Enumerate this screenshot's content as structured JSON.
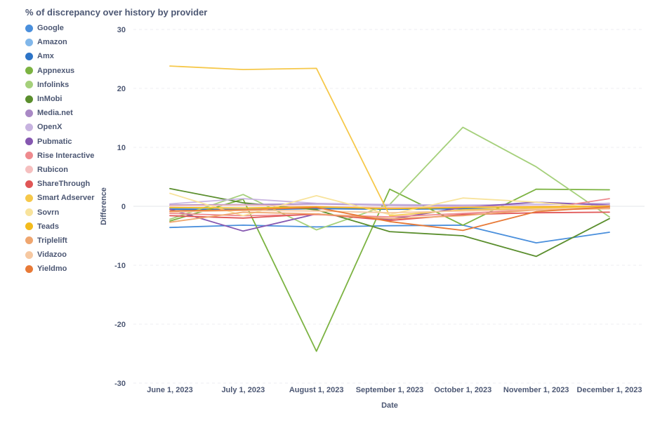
{
  "chart_data": {
    "type": "line",
    "title": "% of discrepancy over history by provider",
    "xlabel": "Date",
    "ylabel": "Difference",
    "x": [
      "June 1, 2023",
      "July 1, 2023",
      "August 1, 2023",
      "September 1, 2023",
      "October 1, 2023",
      "November 1, 2023",
      "December 1, 2023"
    ],
    "ylim": [
      -30,
      30
    ],
    "yticks": [
      30,
      20,
      10,
      0,
      -10,
      -20,
      -30
    ],
    "grid": true,
    "legend_position": "left",
    "series": [
      {
        "name": "Google",
        "color": "#4a8fdc",
        "values": [
          -3.6,
          -3.2,
          -3.5,
          -3.3,
          -3.2,
          -6.2,
          -4.4
        ]
      },
      {
        "name": "Amazon",
        "color": "#81b7ea",
        "values": [
          -0.3,
          -0.4,
          -0.2,
          -0.3,
          -0.4,
          -0.5,
          -0.2
        ]
      },
      {
        "name": "Amx",
        "color": "#2d74c7",
        "values": [
          -0.5,
          -0.6,
          -0.4,
          -0.5,
          -0.4,
          -0.6,
          -0.3
        ]
      },
      {
        "name": "Appnexus",
        "color": "#7cb342",
        "values": [
          -2.5,
          1.2,
          -24.6,
          2.9,
          -3.2,
          2.9,
          2.8
        ]
      },
      {
        "name": "Infolinks",
        "color": "#a5d07b",
        "values": [
          -2.2,
          2.0,
          -4.0,
          0.3,
          13.4,
          6.7,
          -1.8
        ]
      },
      {
        "name": "InMobi",
        "color": "#5a8e2d",
        "values": [
          3.0,
          0.6,
          -0.6,
          -4.3,
          -5.0,
          -8.5,
          -2.1
        ]
      },
      {
        "name": "Media.net",
        "color": "#a989c5",
        "values": [
          0.2,
          0.3,
          0.4,
          0.2,
          0.1,
          0.3,
          0.5
        ]
      },
      {
        "name": "OpenX",
        "color": "#c7b3e0",
        "values": [
          0.4,
          1.3,
          0.5,
          0.3,
          0.2,
          0.3,
          0.5
        ]
      },
      {
        "name": "Pubmatic",
        "color": "#8557b0",
        "values": [
          -0.5,
          -4.2,
          -1.3,
          -2.2,
          -0.2,
          0.7,
          0.2
        ]
      },
      {
        "name": "Rise Interactive",
        "color": "#ee8a8e",
        "values": [
          -1.2,
          -1.6,
          -1.4,
          -1.8,
          -1.2,
          -0.6,
          1.3
        ]
      },
      {
        "name": "Rubicon",
        "color": "#f5bfbf",
        "values": [
          0.1,
          0.2,
          0.0,
          -0.2,
          -0.1,
          0.0,
          0.1
        ]
      },
      {
        "name": "ShareThrough",
        "color": "#e05656",
        "values": [
          -1.6,
          -2.0,
          -1.3,
          -2.4,
          -1.4,
          -1.1,
          -1.0
        ]
      },
      {
        "name": "Smart Adserver",
        "color": "#f6c84a",
        "values": [
          23.8,
          23.2,
          23.4,
          -1.6,
          -0.6,
          -0.3,
          -0.2
        ]
      },
      {
        "name": "Sovrn",
        "color": "#f8e39c",
        "values": [
          2.2,
          -1.6,
          1.8,
          -1.4,
          1.4,
          0.7,
          -0.4
        ]
      },
      {
        "name": "Teads",
        "color": "#f3bb1c",
        "values": [
          -0.2,
          -0.3,
          -0.1,
          -0.4,
          -0.2,
          -0.1,
          0.0
        ]
      },
      {
        "name": "Triplelift",
        "color": "#efa66f",
        "values": [
          -2.7,
          -1.0,
          -1.3,
          -2.1,
          -1.6,
          -0.6,
          -0.4
        ]
      },
      {
        "name": "Vidazoo",
        "color": "#f6c8a1",
        "values": [
          -1.0,
          -0.7,
          -0.8,
          -1.1,
          -0.8,
          -0.5,
          -0.2
        ]
      },
      {
        "name": "Yieldmo",
        "color": "#e87a37",
        "values": [
          -0.8,
          -0.6,
          -0.2,
          -2.6,
          -4.1,
          -0.9,
          -0.1
        ]
      }
    ]
  }
}
